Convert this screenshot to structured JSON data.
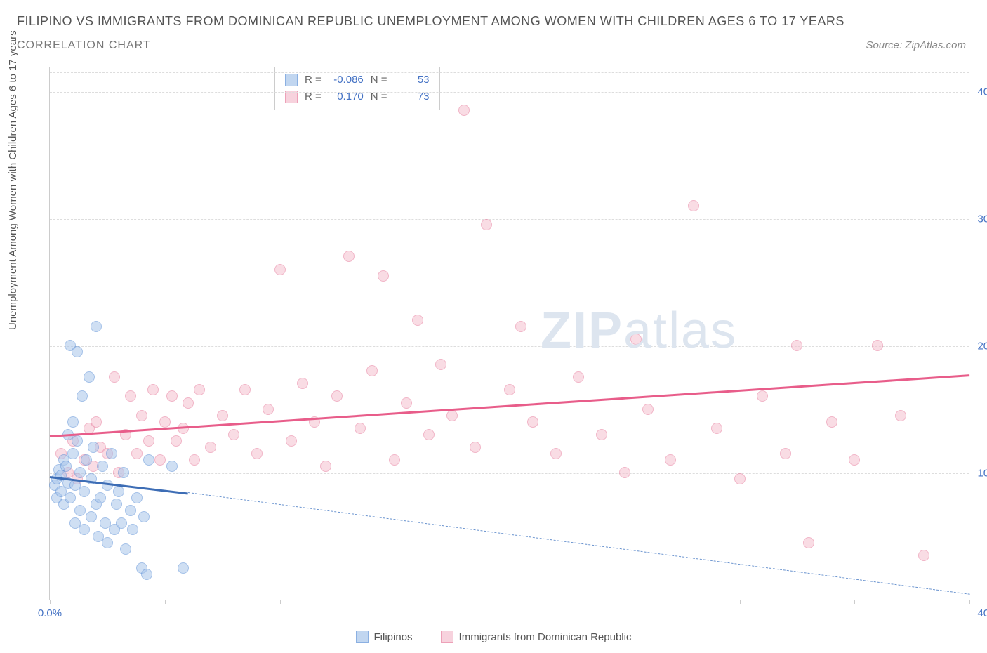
{
  "title": "FILIPINO VS IMMIGRANTS FROM DOMINICAN REPUBLIC UNEMPLOYMENT AMONG WOMEN WITH CHILDREN AGES 6 TO 17 YEARS",
  "subtitle": "CORRELATION CHART",
  "source": "Source: ZipAtlas.com",
  "y_axis_label": "Unemployment Among Women with Children Ages 6 to 17 years",
  "watermark_bold": "ZIP",
  "watermark_light": "atlas",
  "chart": {
    "type": "scatter",
    "xlim": [
      0,
      40
    ],
    "ylim": [
      0,
      42
    ],
    "x_ticks": [
      0,
      5,
      10,
      15,
      20,
      25,
      30,
      35,
      40
    ],
    "x_tick_labels": {
      "0": "0.0%",
      "40": "40.0%"
    },
    "y_ticks": [
      10,
      20,
      30,
      40
    ],
    "y_tick_labels": {
      "10": "10.0%",
      "20": "20.0%",
      "30": "30.0%",
      "40": "40.0%"
    },
    "grid_color": "#dddddd",
    "axis_color": "#cccccc",
    "background_color": "#ffffff",
    "tick_label_color": "#4472c4"
  },
  "series": {
    "filipinos": {
      "label": "Filipinos",
      "fill_color": "#a8c5eb",
      "stroke_color": "#5b8fd6",
      "fill_opacity": 0.55,
      "marker_size": 16,
      "R": "-0.086",
      "N": "53",
      "trend": {
        "y_at_x0": 9.8,
        "y_at_x6": 8.5,
        "color": "#3d6db5",
        "width": 3,
        "dash": false
      },
      "trend_extrapolated": {
        "x0": 6,
        "y0": 8.5,
        "x1": 40,
        "y1": 0.5,
        "color": "#6b94cf",
        "width": 1,
        "dash": true
      },
      "points": [
        [
          0.2,
          9.0
        ],
        [
          0.3,
          8.0
        ],
        [
          0.3,
          9.5
        ],
        [
          0.4,
          10.2
        ],
        [
          0.5,
          8.5
        ],
        [
          0.5,
          9.8
        ],
        [
          0.6,
          7.5
        ],
        [
          0.6,
          11.0
        ],
        [
          0.7,
          10.5
        ],
        [
          0.8,
          9.2
        ],
        [
          0.8,
          13.0
        ],
        [
          0.9,
          8.0
        ],
        [
          0.9,
          20.0
        ],
        [
          1.0,
          11.5
        ],
        [
          1.0,
          14.0
        ],
        [
          1.1,
          6.0
        ],
        [
          1.1,
          9.0
        ],
        [
          1.2,
          12.5
        ],
        [
          1.2,
          19.5
        ],
        [
          1.3,
          7.0
        ],
        [
          1.3,
          10.0
        ],
        [
          1.4,
          16.0
        ],
        [
          1.5,
          5.5
        ],
        [
          1.5,
          8.5
        ],
        [
          1.6,
          11.0
        ],
        [
          1.7,
          17.5
        ],
        [
          1.8,
          6.5
        ],
        [
          1.8,
          9.5
        ],
        [
          1.9,
          12.0
        ],
        [
          2.0,
          7.5
        ],
        [
          2.0,
          21.5
        ],
        [
          2.1,
          5.0
        ],
        [
          2.2,
          8.0
        ],
        [
          2.3,
          10.5
        ],
        [
          2.4,
          6.0
        ],
        [
          2.5,
          4.5
        ],
        [
          2.5,
          9.0
        ],
        [
          2.7,
          11.5
        ],
        [
          2.8,
          5.5
        ],
        [
          2.9,
          7.5
        ],
        [
          3.0,
          8.5
        ],
        [
          3.1,
          6.0
        ],
        [
          3.2,
          10.0
        ],
        [
          3.3,
          4.0
        ],
        [
          3.5,
          7.0
        ],
        [
          3.6,
          5.5
        ],
        [
          3.8,
          8.0
        ],
        [
          4.0,
          2.5
        ],
        [
          4.1,
          6.5
        ],
        [
          4.2,
          2.0
        ],
        [
          4.3,
          11.0
        ],
        [
          5.3,
          10.5
        ],
        [
          5.8,
          2.5
        ]
      ]
    },
    "dominicans": {
      "label": "Immigrants from Dominican Republic",
      "fill_color": "#f5c0cf",
      "stroke_color": "#e67a9b",
      "fill_opacity": 0.55,
      "marker_size": 16,
      "R": "0.170",
      "N": "73",
      "trend": {
        "y_at_x0": 13.0,
        "y_at_x40": 17.8,
        "color": "#e85d8a",
        "width": 3,
        "dash": false
      },
      "points": [
        [
          0.5,
          11.5
        ],
        [
          0.8,
          10.0
        ],
        [
          1.0,
          12.5
        ],
        [
          1.2,
          9.5
        ],
        [
          1.5,
          11.0
        ],
        [
          1.7,
          13.5
        ],
        [
          1.9,
          10.5
        ],
        [
          2.0,
          14.0
        ],
        [
          2.2,
          12.0
        ],
        [
          2.5,
          11.5
        ],
        [
          2.8,
          17.5
        ],
        [
          3.0,
          10.0
        ],
        [
          3.3,
          13.0
        ],
        [
          3.5,
          16.0
        ],
        [
          3.8,
          11.5
        ],
        [
          4.0,
          14.5
        ],
        [
          4.3,
          12.5
        ],
        [
          4.5,
          16.5
        ],
        [
          4.8,
          11.0
        ],
        [
          5.0,
          14.0
        ],
        [
          5.3,
          16.0
        ],
        [
          5.5,
          12.5
        ],
        [
          5.8,
          13.5
        ],
        [
          6.0,
          15.5
        ],
        [
          6.3,
          11.0
        ],
        [
          6.5,
          16.5
        ],
        [
          7.0,
          12.0
        ],
        [
          7.5,
          14.5
        ],
        [
          8.0,
          13.0
        ],
        [
          8.5,
          16.5
        ],
        [
          9.0,
          11.5
        ],
        [
          9.5,
          15.0
        ],
        [
          10.0,
          26.0
        ],
        [
          10.5,
          12.5
        ],
        [
          11.0,
          17.0
        ],
        [
          11.5,
          14.0
        ],
        [
          12.0,
          10.5
        ],
        [
          12.5,
          16.0
        ],
        [
          13.0,
          27.0
        ],
        [
          13.5,
          13.5
        ],
        [
          14.0,
          18.0
        ],
        [
          14.5,
          25.5
        ],
        [
          15.0,
          11.0
        ],
        [
          15.5,
          15.5
        ],
        [
          16.0,
          22.0
        ],
        [
          16.5,
          13.0
        ],
        [
          17.0,
          18.5
        ],
        [
          17.5,
          14.5
        ],
        [
          18.0,
          38.5
        ],
        [
          18.5,
          12.0
        ],
        [
          19.0,
          29.5
        ],
        [
          20.0,
          16.5
        ],
        [
          20.5,
          21.5
        ],
        [
          21.0,
          14.0
        ],
        [
          22.0,
          11.5
        ],
        [
          23.0,
          17.5
        ],
        [
          24.0,
          13.0
        ],
        [
          25.0,
          10.0
        ],
        [
          25.5,
          20.5
        ],
        [
          26.0,
          15.0
        ],
        [
          27.0,
          11.0
        ],
        [
          28.0,
          31.0
        ],
        [
          29.0,
          13.5
        ],
        [
          30.0,
          9.5
        ],
        [
          31.0,
          16.0
        ],
        [
          32.0,
          11.5
        ],
        [
          32.5,
          20.0
        ],
        [
          33.0,
          4.5
        ],
        [
          34.0,
          14.0
        ],
        [
          35.0,
          11.0
        ],
        [
          36.0,
          20.0
        ],
        [
          37.0,
          14.5
        ],
        [
          38.0,
          3.5
        ]
      ]
    }
  },
  "correlation_legend": {
    "R_label": "R =",
    "N_label": "N ="
  },
  "bottom_legend_labels": {
    "filipinos": "Filipinos",
    "dominicans": "Immigrants from Dominican Republic"
  }
}
